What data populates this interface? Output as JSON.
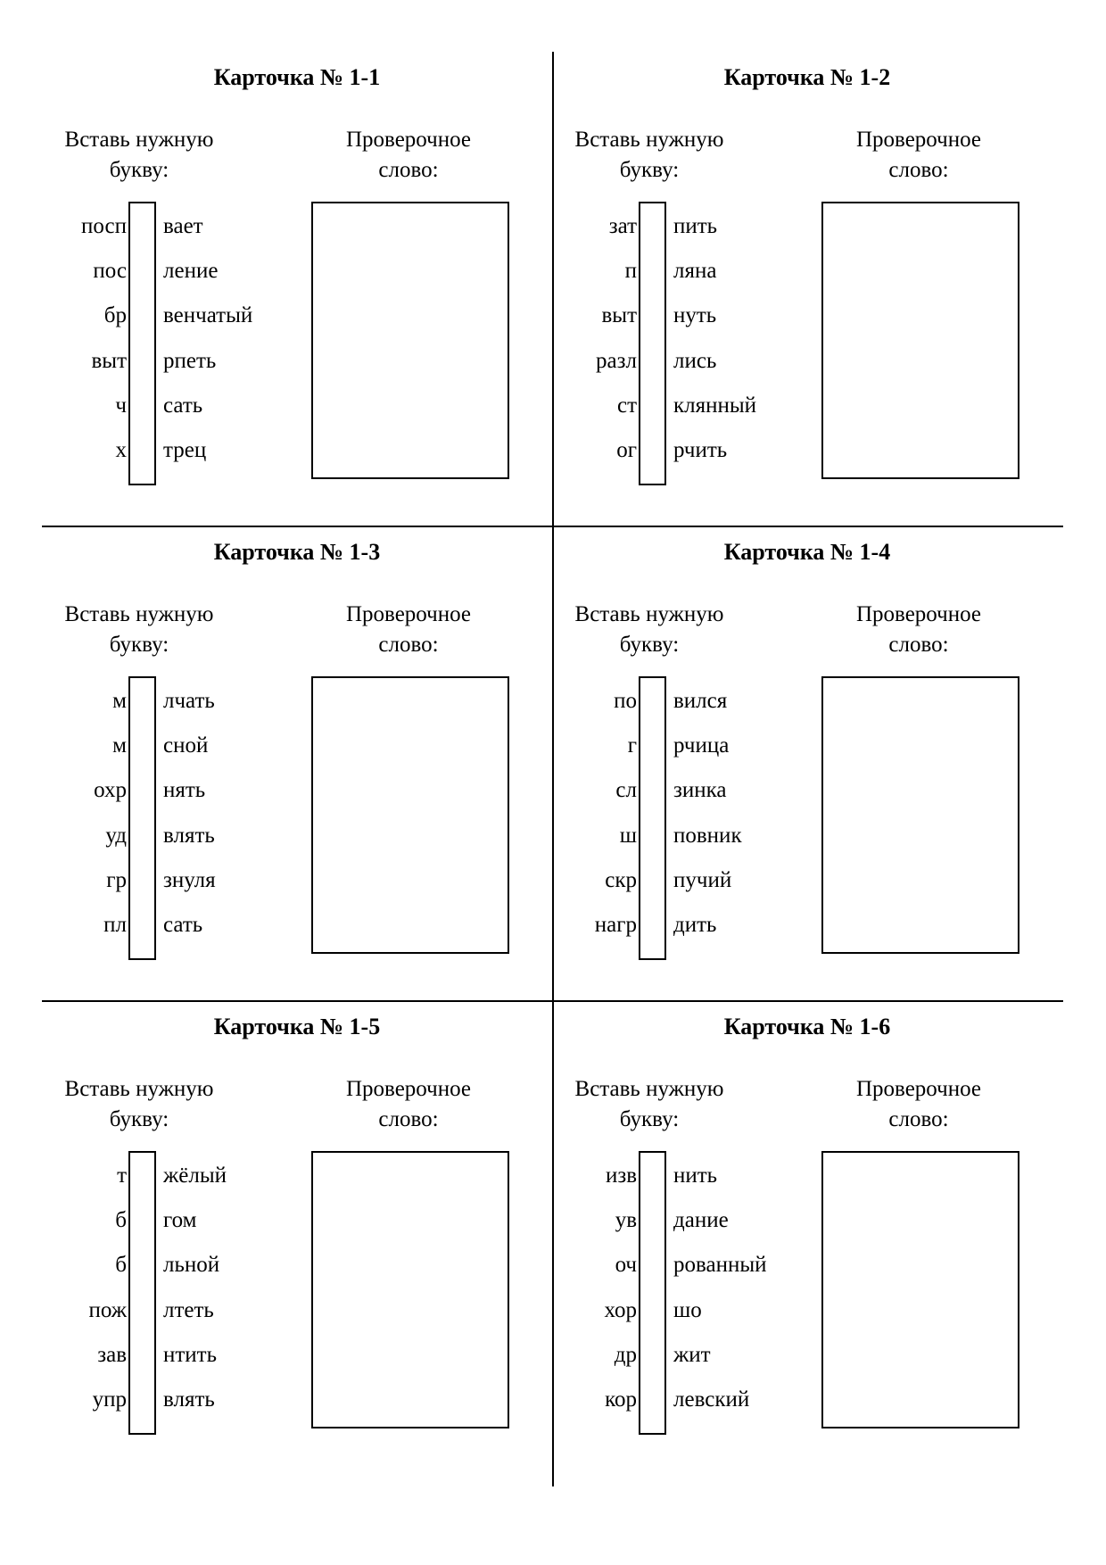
{
  "cards": [
    {
      "title": "Карточка № 1-1",
      "instruction_line1": "Вставь нужную",
      "instruction_line2": "букву:",
      "check_line1": "Проверочное",
      "check_line2": "слово:",
      "words": [
        {
          "prefix": "посп",
          "suffix": "вает"
        },
        {
          "prefix": "пос",
          "suffix": "ление"
        },
        {
          "prefix": "бр",
          "suffix": "венчатый"
        },
        {
          "prefix": "выт",
          "suffix": "рпеть"
        },
        {
          "prefix": "ч",
          "suffix": "сать"
        },
        {
          "prefix": "х",
          "suffix": "трец"
        }
      ]
    },
    {
      "title": "Карточка № 1-2",
      "instruction_line1": "Вставь нужную",
      "instruction_line2": "букву:",
      "check_line1": "Проверочное",
      "check_line2": "слово:",
      "words": [
        {
          "prefix": "зат",
          "suffix": "пить"
        },
        {
          "prefix": "п",
          "suffix": "ляна"
        },
        {
          "prefix": "выт",
          "suffix": "нуть"
        },
        {
          "prefix": "разл",
          "suffix": "лись"
        },
        {
          "prefix": "ст",
          "suffix": "клянный"
        },
        {
          "prefix": "ог",
          "suffix": "рчить"
        }
      ]
    },
    {
      "title": "Карточка № 1-3",
      "instruction_line1": "Вставь нужную",
      "instruction_line2": "букву:",
      "check_line1": "Проверочное",
      "check_line2": "слово:",
      "words": [
        {
          "prefix": "м",
          "suffix": "лчать"
        },
        {
          "prefix": "м",
          "suffix": "сной"
        },
        {
          "prefix": "охр",
          "suffix": "нять"
        },
        {
          "prefix": "уд",
          "suffix": "влять"
        },
        {
          "prefix": "гр",
          "suffix": "знуля"
        },
        {
          "prefix": "пл",
          "suffix": "сать"
        }
      ]
    },
    {
      "title": "Карточка № 1-4",
      "instruction_line1": "Вставь нужную",
      "instruction_line2": "букву:",
      "check_line1": "Проверочное",
      "check_line2": "слово:",
      "words": [
        {
          "prefix": "по",
          "suffix": "вился"
        },
        {
          "prefix": "г",
          "suffix": "рчица"
        },
        {
          "prefix": "сл",
          "suffix": "зинка"
        },
        {
          "prefix": "ш",
          "suffix": "повник"
        },
        {
          "prefix": "скр",
          "suffix": "пучий"
        },
        {
          "prefix": "нагр",
          "suffix": "дить"
        }
      ]
    },
    {
      "title": "Карточка № 1-5",
      "instruction_line1": "Вставь нужную",
      "instruction_line2": "букву:",
      "check_line1": "Проверочное",
      "check_line2": "слово:",
      "words": [
        {
          "prefix": "т",
          "suffix": "жёлый"
        },
        {
          "prefix": "б",
          "suffix": "гом"
        },
        {
          "prefix": "б",
          "suffix": "льной"
        },
        {
          "prefix": "пож",
          "suffix": "лтеть"
        },
        {
          "prefix": "зав",
          "suffix": "нтить"
        },
        {
          "prefix": "упр",
          "suffix": "влять"
        }
      ]
    },
    {
      "title": "Карточка № 1-6",
      "instruction_line1": "Вставь нужную",
      "instruction_line2": "букву:",
      "check_line1": "Проверочное",
      "check_line2": "слово:",
      "words": [
        {
          "prefix": "изв",
          "suffix": "нить"
        },
        {
          "prefix": "ув",
          "suffix": "дание"
        },
        {
          "prefix": "оч",
          "suffix": "рованный"
        },
        {
          "prefix": "хор",
          "suffix": "шо"
        },
        {
          "prefix": "др",
          "suffix": "жит"
        },
        {
          "prefix": "кор",
          "suffix": "левский"
        }
      ]
    }
  ]
}
